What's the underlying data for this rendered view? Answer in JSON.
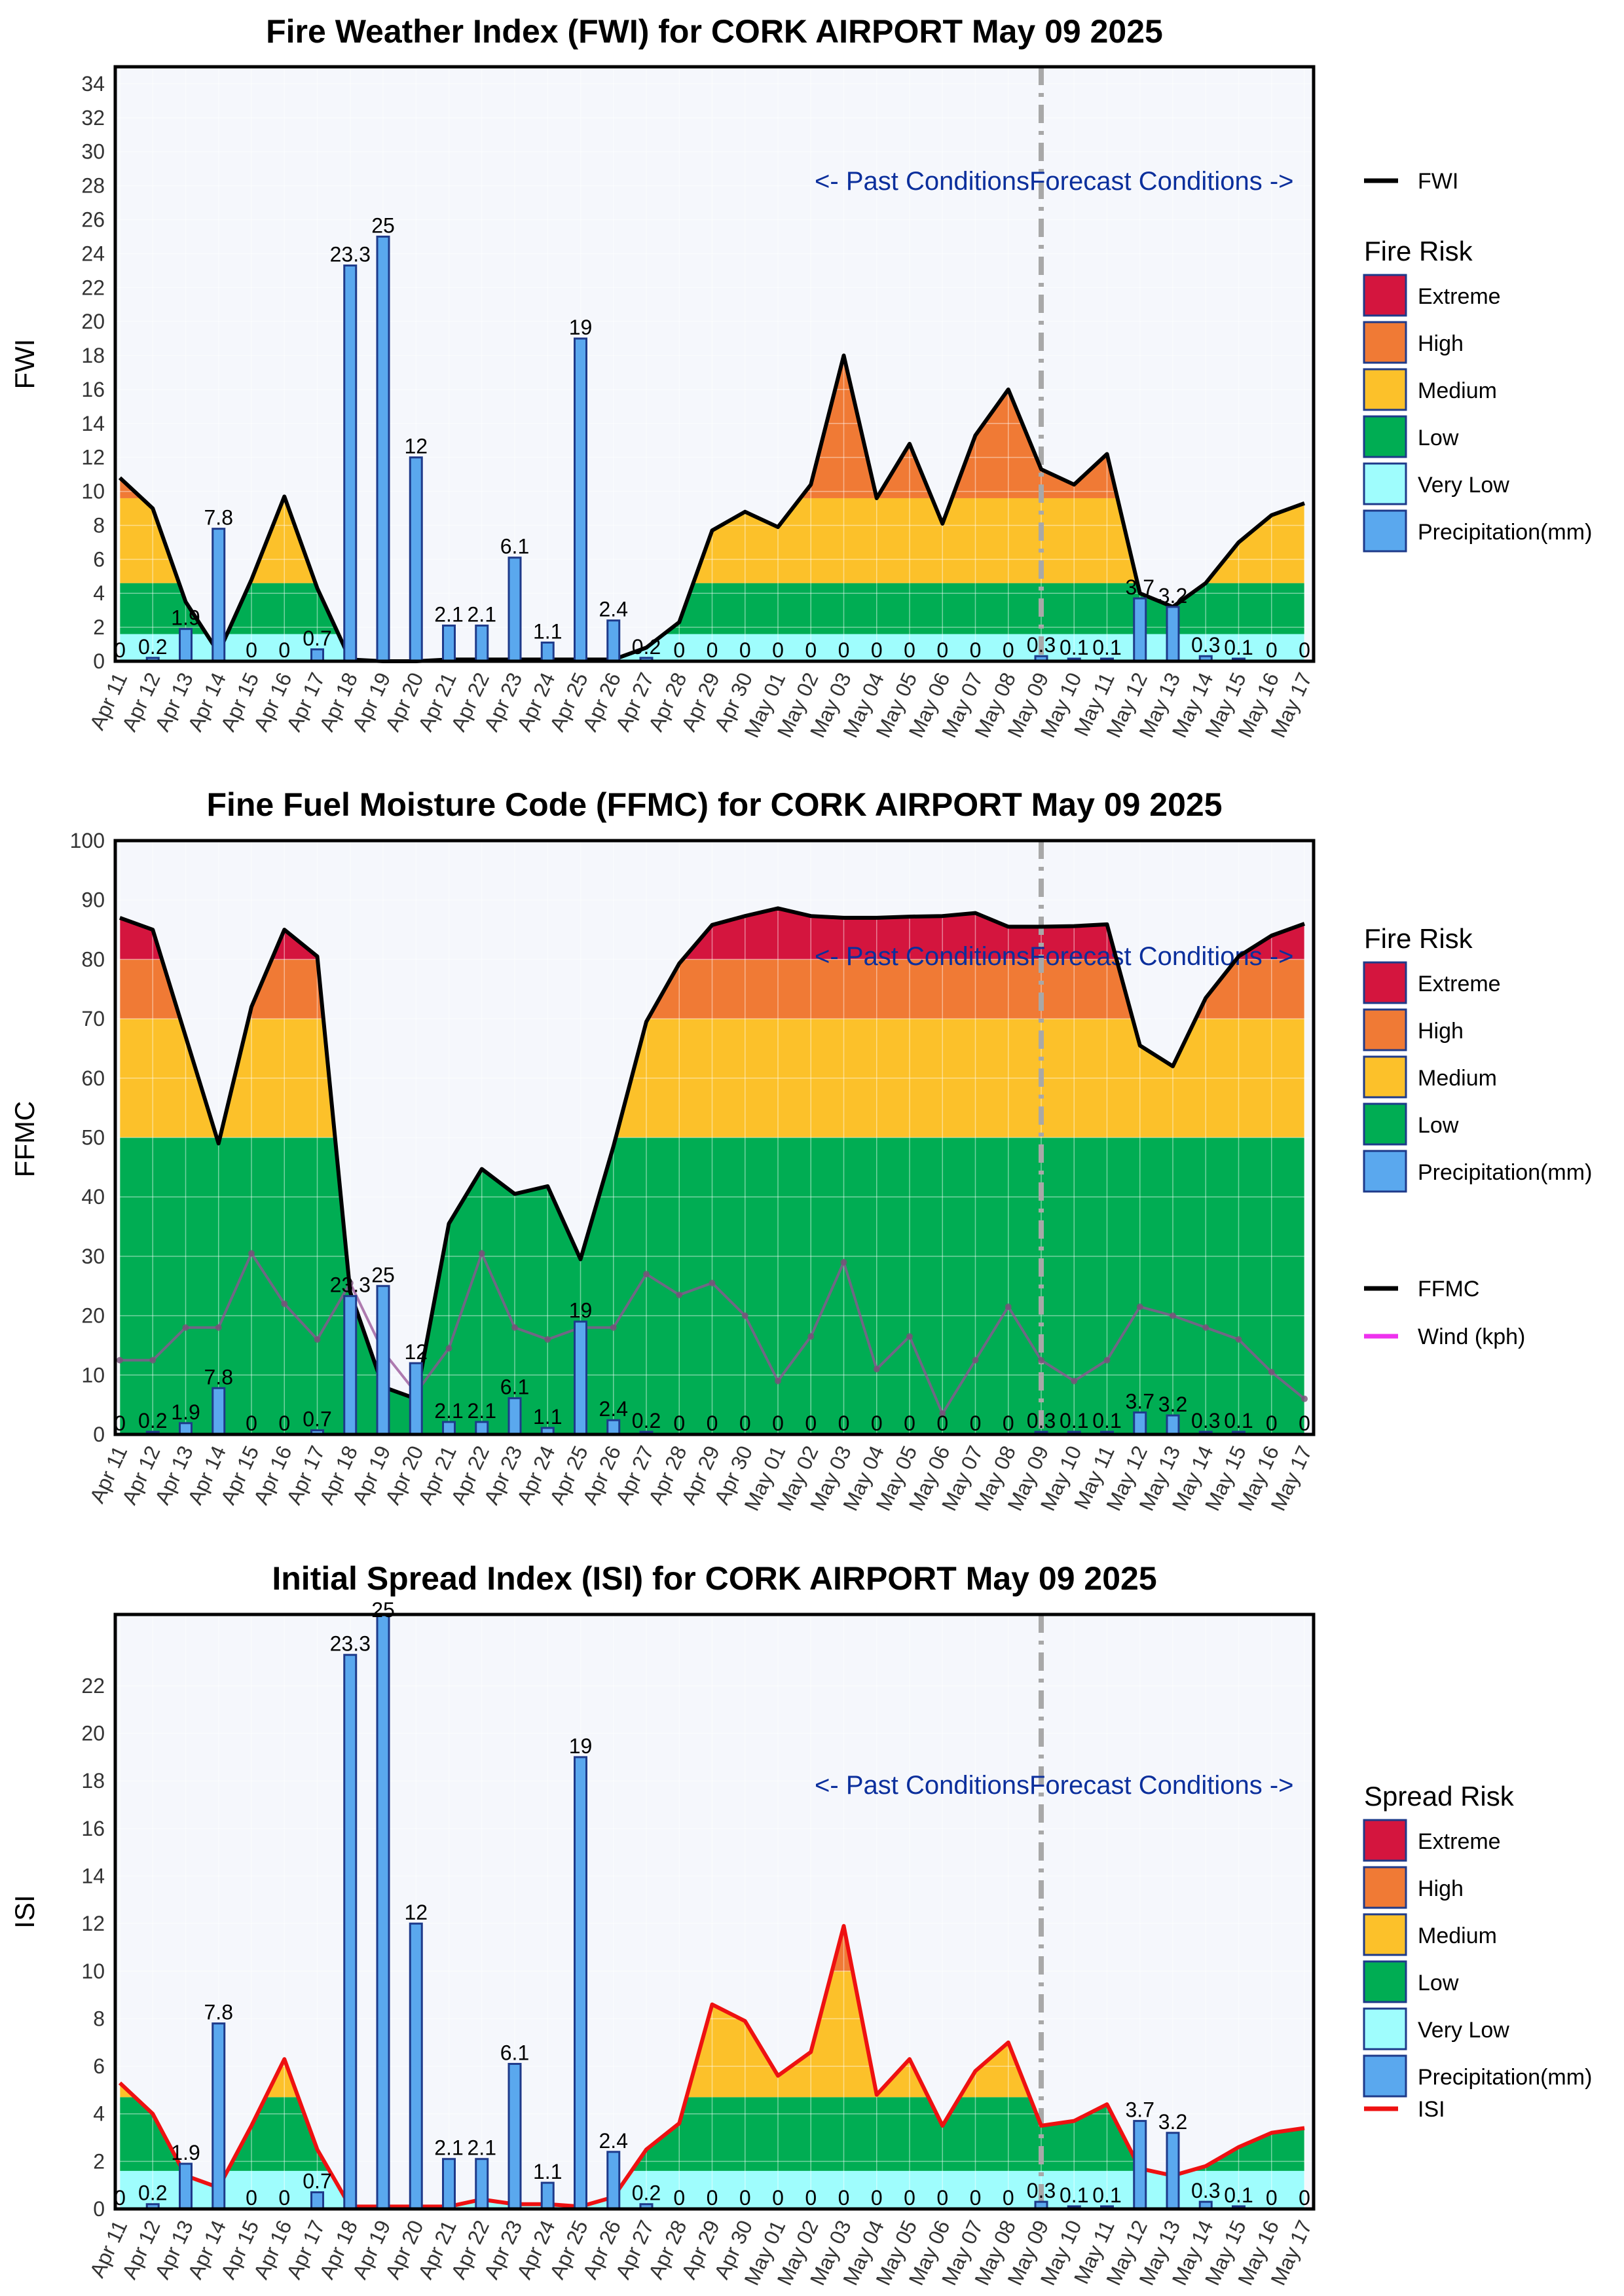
{
  "colors": {
    "extreme": "#d4153e",
    "high": "#f07a35",
    "medium": "#fcc12a",
    "low": "#00ad53",
    "very_low": "#9ffdfd",
    "precip": "#5aa8ee",
    "precip_edge": "#1e3a8a",
    "wind": "#ee32ee",
    "isi_line": "#ee1111",
    "fwi_line": "#000000",
    "plot_bg": "#f5f7fc",
    "annot": "#0b2f9c"
  },
  "dates": [
    "Apr 11",
    "Apr 12",
    "Apr 13",
    "Apr 14",
    "Apr 15",
    "Apr 16",
    "Apr 17",
    "Apr 18",
    "Apr 19",
    "Apr 20",
    "Apr 21",
    "Apr 22",
    "Apr 23",
    "Apr 24",
    "Apr 25",
    "Apr 26",
    "Apr 27",
    "Apr 28",
    "Apr 29",
    "Apr 30",
    "May 01",
    "May 02",
    "May 03",
    "May 04",
    "May 05",
    "May 06",
    "May 07",
    "May 08",
    "May 09",
    "May 10",
    "May 11",
    "May 12",
    "May 13",
    "May 14",
    "May 15",
    "May 16",
    "May 17"
  ],
  "precip_labels": [
    "0",
    "0.2",
    "1.9",
    "7.8",
    "0",
    "0",
    "0.7",
    "23.3",
    "25",
    "12",
    "2.1",
    "2.1",
    "6.1",
    "1.1",
    "19",
    "2.4",
    "0.2",
    "0",
    "0",
    "0",
    "0",
    "0",
    "0",
    "0",
    "0",
    "0",
    "0",
    "0",
    "0.3",
    "0.1",
    "0.1",
    "3.7",
    "3.2",
    "0.3",
    "0.1",
    "0",
    "0"
  ],
  "annotations": {
    "past": "<- Past Conditions",
    "forecast": "Forecast Conditions ->"
  },
  "chart_data": [
    {
      "type": "area",
      "title": "Fire Weather Index (FWI) for CORK AIRPORT May 09 2025",
      "ylabel": "FWI",
      "ylim": [
        0,
        35
      ],
      "yticks": [
        0,
        2,
        4,
        6,
        8,
        10,
        12,
        14,
        16,
        18,
        20,
        22,
        24,
        26,
        28,
        30,
        32,
        34
      ],
      "x": [
        "Apr 11",
        "Apr 12",
        "Apr 13",
        "Apr 14",
        "Apr 15",
        "Apr 16",
        "Apr 17",
        "Apr 18",
        "Apr 19",
        "Apr 20",
        "Apr 21",
        "Apr 22",
        "Apr 23",
        "Apr 24",
        "Apr 25",
        "Apr 26",
        "Apr 27",
        "Apr 28",
        "Apr 29",
        "Apr 30",
        "May 01",
        "May 02",
        "May 03",
        "May 04",
        "May 05",
        "May 06",
        "May 07",
        "May 08",
        "May 09",
        "May 10",
        "May 11",
        "May 12",
        "May 13",
        "May 14",
        "May 15",
        "May 16",
        "May 17"
      ],
      "risk_legend_title": "Fire Risk",
      "risk_bands": [
        {
          "name": "Very Low",
          "from": 0,
          "to": 1.6,
          "color": "very_low"
        },
        {
          "name": "Low",
          "from": 1.6,
          "to": 4.6,
          "color": "low"
        },
        {
          "name": "Medium",
          "from": 4.6,
          "to": 9.6,
          "color": "medium"
        },
        {
          "name": "High",
          "from": 9.6,
          "to": 17.6,
          "color": "high"
        },
        {
          "name": "Extreme",
          "from": 17.6,
          "to": 1000,
          "color": "extreme"
        }
      ],
      "legend_risk": [
        "Extreme",
        "High",
        "Medium",
        "Low",
        "Very Low",
        "Precipitation(mm)"
      ],
      "series": [
        {
          "name": "FWI",
          "values": [
            10.8,
            9.0,
            3.5,
            0.5,
            4.8,
            9.7,
            4.3,
            0.1,
            0.0,
            0.0,
            0.1,
            0.1,
            0.1,
            0.1,
            0.1,
            0.1,
            0.8,
            2.3,
            7.7,
            8.8,
            7.9,
            10.4,
            18.0,
            9.6,
            12.8,
            8.1,
            13.3,
            16.0,
            11.3,
            10.4,
            12.2,
            4.0,
            3.2,
            4.6,
            7.0,
            8.6,
            9.3
          ]
        },
        {
          "name": "Precipitation(mm)",
          "values": [
            0,
            0.2,
            1.9,
            7.8,
            0,
            0,
            0.7,
            23.3,
            25,
            12,
            2.1,
            2.1,
            6.1,
            1.1,
            19,
            2.4,
            0.2,
            0,
            0,
            0,
            0,
            0,
            0,
            0,
            0,
            0,
            0,
            0,
            0.3,
            0.1,
            0.1,
            3.7,
            3.2,
            0.3,
            0.1,
            0,
            0
          ]
        }
      ],
      "line_legend": [
        {
          "name": "FWI",
          "color": "fwi_line"
        }
      ],
      "forecast_start": "May 09",
      "grid": true
    },
    {
      "type": "area",
      "title": "Fine Fuel Moisture Code (FFMC) for CORK AIRPORT May 09 2025",
      "ylabel": "FFMC",
      "ylim": [
        0,
        100
      ],
      "yticks": [
        0,
        10,
        20,
        30,
        40,
        50,
        60,
        70,
        80,
        90,
        100
      ],
      "x": [
        "Apr 11",
        "Apr 12",
        "Apr 13",
        "Apr 14",
        "Apr 15",
        "Apr 16",
        "Apr 17",
        "Apr 18",
        "Apr 19",
        "Apr 20",
        "Apr 21",
        "Apr 22",
        "Apr 23",
        "Apr 24",
        "Apr 25",
        "Apr 26",
        "Apr 27",
        "Apr 28",
        "Apr 29",
        "Apr 30",
        "May 01",
        "May 02",
        "May 03",
        "May 04",
        "May 05",
        "May 06",
        "May 07",
        "May 08",
        "May 09",
        "May 10",
        "May 11",
        "May 12",
        "May 13",
        "May 14",
        "May 15",
        "May 16",
        "May 17"
      ],
      "risk_legend_title": "Fire Risk",
      "risk_bands": [
        {
          "name": "Low",
          "from": 0,
          "to": 50,
          "color": "low"
        },
        {
          "name": "Medium",
          "from": 50,
          "to": 70,
          "color": "medium"
        },
        {
          "name": "High",
          "from": 70,
          "to": 80,
          "color": "high"
        },
        {
          "name": "Extreme",
          "from": 80,
          "to": 1000,
          "color": "extreme"
        }
      ],
      "legend_risk": [
        "Extreme",
        "High",
        "Medium",
        "Low",
        "Precipitation(mm)"
      ],
      "series": [
        {
          "name": "FFMC",
          "values": [
            87.0,
            85.0,
            67.0,
            49.0,
            72.0,
            85.0,
            80.5,
            24.0,
            8.0,
            6.0,
            35.5,
            44.7,
            40.5,
            41.8,
            29.5,
            48.5,
            69.5,
            79.3,
            85.8,
            87.3,
            88.6,
            87.3,
            87.0,
            87.0,
            87.2,
            87.3,
            87.8,
            85.5,
            85.5,
            85.6,
            85.9,
            65.5,
            62.0,
            73.5,
            80.5,
            84.0,
            86.0
          ]
        },
        {
          "name": "Wind (kph)",
          "values": [
            12.5,
            12.5,
            18.0,
            18.0,
            30.5,
            22.0,
            16.0,
            25.5,
            14.0,
            7.0,
            14.5,
            30.5,
            18.0,
            16.0,
            18.0,
            18.0,
            27.0,
            23.5,
            25.5,
            20.0,
            9.0,
            16.5,
            29.0,
            11.0,
            16.5,
            3.5,
            12.5,
            21.5,
            12.5,
            9.0,
            12.5,
            21.5,
            20.0,
            18.0,
            16.0,
            10.5,
            6.0
          ]
        },
        {
          "name": "Precipitation(mm)",
          "values": [
            0,
            0.2,
            1.9,
            7.8,
            0,
            0,
            0.7,
            23.3,
            25,
            12,
            2.1,
            2.1,
            6.1,
            1.1,
            19,
            2.4,
            0.2,
            0,
            0,
            0,
            0,
            0,
            0,
            0,
            0,
            0,
            0,
            0,
            0.3,
            0.1,
            0.1,
            3.7,
            3.2,
            0.3,
            0.1,
            0,
            0
          ]
        }
      ],
      "line_legend": [
        {
          "name": "FFMC",
          "color": "fwi_line"
        },
        {
          "name": "Wind (kph)",
          "color": "wind"
        }
      ],
      "forecast_start": "May 09",
      "grid": true
    },
    {
      "type": "area",
      "title": "Initial Spread Index (ISI) for CORK AIRPORT May 09 2025",
      "ylabel": "ISI",
      "ylim": [
        0,
        25
      ],
      "yticks": [
        0,
        2,
        4,
        6,
        8,
        10,
        12,
        14,
        16,
        18,
        20,
        22
      ],
      "x": [
        "Apr 11",
        "Apr 12",
        "Apr 13",
        "Apr 14",
        "Apr 15",
        "Apr 16",
        "Apr 17",
        "Apr 18",
        "Apr 19",
        "Apr 20",
        "Apr 21",
        "Apr 22",
        "Apr 23",
        "Apr 24",
        "Apr 25",
        "Apr 26",
        "Apr 27",
        "Apr 28",
        "Apr 29",
        "Apr 30",
        "May 01",
        "May 02",
        "May 03",
        "May 04",
        "May 05",
        "May 06",
        "May 07",
        "May 08",
        "May 09",
        "May 10",
        "May 11",
        "May 12",
        "May 13",
        "May 14",
        "May 15",
        "May 16",
        "May 17"
      ],
      "risk_legend_title": "Spread Risk",
      "risk_bands": [
        {
          "name": "Very Low",
          "from": 0,
          "to": 1.6,
          "color": "very_low"
        },
        {
          "name": "Low",
          "from": 1.6,
          "to": 4.7,
          "color": "low"
        },
        {
          "name": "Medium",
          "from": 4.7,
          "to": 10.0,
          "color": "medium"
        },
        {
          "name": "High",
          "from": 10.0,
          "to": 16.0,
          "color": "high"
        },
        {
          "name": "Extreme",
          "from": 16.0,
          "to": 1000,
          "color": "extreme"
        }
      ],
      "legend_risk": [
        "Extreme",
        "High",
        "Medium",
        "Low",
        "Very Low",
        "Precipitation(mm)"
      ],
      "series": [
        {
          "name": "ISI",
          "values": [
            5.3,
            4.0,
            1.4,
            0.9,
            3.5,
            6.3,
            2.5,
            0.1,
            0.1,
            0.1,
            0.1,
            0.4,
            0.2,
            0.2,
            0.1,
            0.5,
            2.5,
            3.6,
            8.6,
            7.9,
            5.6,
            6.6,
            11.9,
            4.8,
            6.3,
            3.5,
            5.8,
            7.0,
            3.5,
            3.7,
            4.4,
            1.7,
            1.4,
            1.8,
            2.6,
            3.2,
            3.4
          ]
        },
        {
          "name": "Precipitation(mm)",
          "values": [
            0,
            0.2,
            1.9,
            7.8,
            0,
            0,
            0.7,
            23.3,
            25,
            12,
            2.1,
            2.1,
            6.1,
            1.1,
            19,
            2.4,
            0.2,
            0,
            0,
            0,
            0,
            0,
            0,
            0,
            0,
            0,
            0,
            0,
            0.3,
            0.1,
            0.1,
            3.7,
            3.2,
            0.3,
            0.1,
            0,
            0
          ]
        }
      ],
      "line_legend": [
        {
          "name": "ISI",
          "color": "isi_line"
        }
      ],
      "forecast_start": "May 09",
      "grid": true
    }
  ]
}
